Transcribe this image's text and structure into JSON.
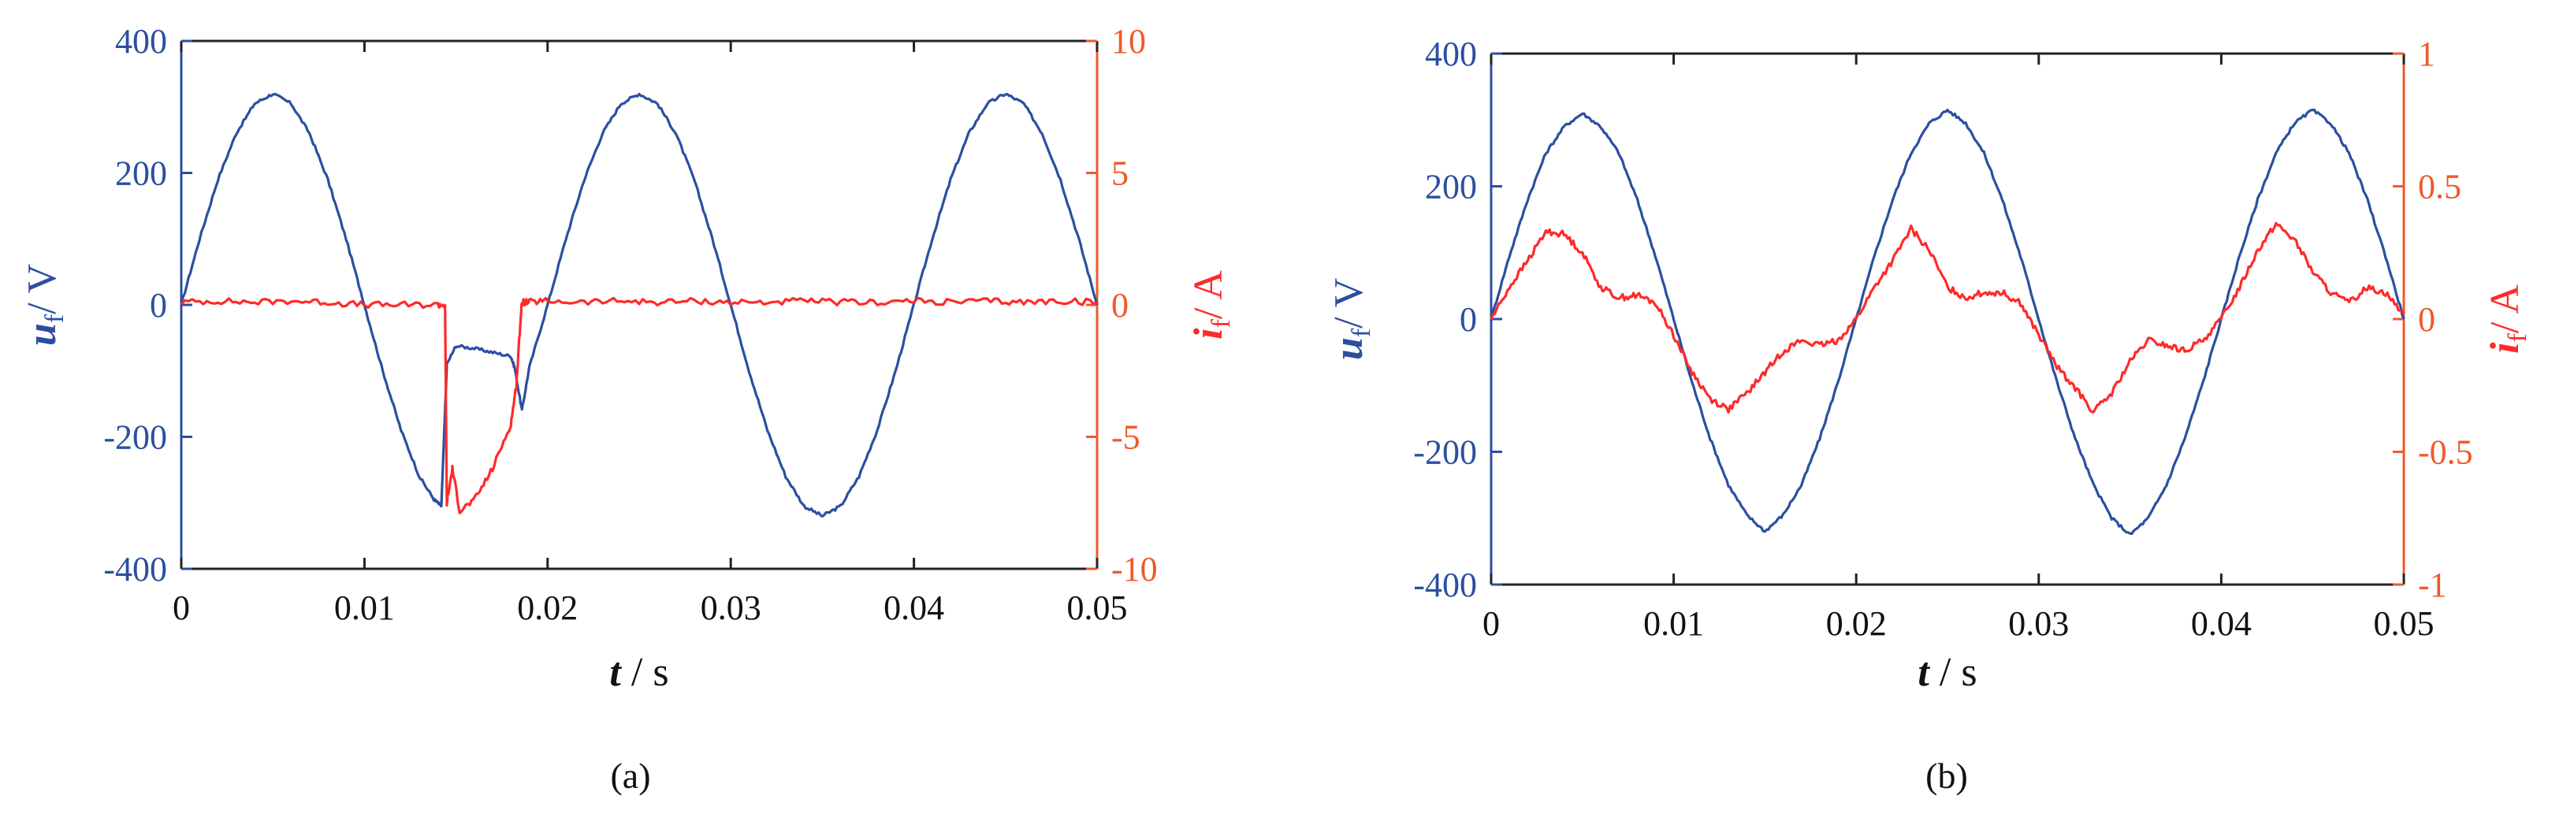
{
  "chart_data": [
    {
      "type": "line",
      "panel": "a",
      "caption": "(a)",
      "xlabel": {
        "var": "t",
        "unit": "/ s"
      },
      "ylabel_left": {
        "var": "u",
        "sub": "f",
        "unit": "/ V"
      },
      "ylabel_right": {
        "var": "i",
        "sub": "f",
        "unit": "/ A"
      },
      "xlim": [
        0,
        0.05
      ],
      "ylim_left": [
        -400,
        400
      ],
      "ylim_right": [
        -10,
        10
      ],
      "xticks": [
        "0",
        "0.01",
        "0.02",
        "0.03",
        "0.04",
        "0.05"
      ],
      "yticks_left": [
        "400",
        "200",
        "0",
        "-200",
        "-400"
      ],
      "yticks_right": [
        "10",
        "5",
        "0",
        "-5",
        "-10"
      ],
      "grid": false,
      "series": [
        {
          "axis": "left",
          "color": "#2b4fa0",
          "x": [
            0,
            0.001,
            0.002,
            0.003,
            0.004,
            0.005,
            0.006,
            0.007,
            0.008,
            0.009,
            0.01,
            0.011,
            0.012,
            0.013,
            0.0138,
            0.0142,
            0.0145,
            0.015,
            0.016,
            0.017,
            0.018,
            0.0182,
            0.0186,
            0.019,
            0.02,
            0.021,
            0.022,
            0.023,
            0.024,
            0.025,
            0.026,
            0.027,
            0.028,
            0.029,
            0.03,
            0.031,
            0.032,
            0.033,
            0.034,
            0.035,
            0.036,
            0.037,
            0.038,
            0.039,
            0.04,
            0.041,
            0.042,
            0.043,
            0.044,
            0.045,
            0.046,
            0.047,
            0.048,
            0.049,
            0.05
          ],
          "y": [
            0,
            100,
            190,
            260,
            305,
            320,
            305,
            260,
            190,
            100,
            0,
            -100,
            -190,
            -260,
            -295,
            -305,
            -90,
            -62,
            -66,
            -72,
            -78,
            -95,
            -160,
            -95,
            0,
            100,
            190,
            260,
            305,
            320,
            305,
            260,
            190,
            100,
            0,
            -100,
            -190,
            -260,
            -305,
            -320,
            -305,
            -260,
            -190,
            -100,
            0,
            100,
            190,
            260,
            305,
            320,
            305,
            260,
            190,
            100,
            0
          ]
        },
        {
          "axis": "right",
          "color": "#ff2a2a",
          "x": [
            0,
            0.002,
            0.004,
            0.006,
            0.008,
            0.01,
            0.012,
            0.014,
            0.0144,
            0.0145,
            0.0148,
            0.0152,
            0.016,
            0.017,
            0.018,
            0.0183,
            0.0185,
            0.0186,
            0.019,
            0.02,
            0.022,
            0.024,
            0.026,
            0.028,
            0.03,
            0.032,
            0.034,
            0.036,
            0.038,
            0.04,
            0.042,
            0.044,
            0.046,
            0.048,
            0.05
          ],
          "y": [
            0.1,
            0.15,
            0.1,
            0.15,
            0.1,
            0.0,
            0.0,
            0.0,
            0.0,
            -7.5,
            -6.2,
            -7.8,
            -7.4,
            -6.2,
            -4.5,
            -3.0,
            -0.8,
            0.1,
            0.1,
            0.15,
            0.1,
            0.15,
            0.1,
            0.15,
            0.1,
            0.1,
            0.15,
            0.1,
            0.1,
            0.15,
            0.1,
            0.15,
            0.1,
            0.15,
            0.1
          ]
        }
      ]
    },
    {
      "type": "line",
      "panel": "b",
      "caption": "(b)",
      "xlabel": {
        "var": "t",
        "unit": "/ s"
      },
      "ylabel_left": {
        "var": "u",
        "sub": "f",
        "unit": "/ V"
      },
      "ylabel_right": {
        "var": "i",
        "sub": "f",
        "unit": "/ A"
      },
      "xlim": [
        0,
        0.05
      ],
      "ylim_left": [
        -400,
        400
      ],
      "ylim_right": [
        -1,
        1
      ],
      "xticks": [
        "0",
        "0.01",
        "0.02",
        "0.03",
        "0.04",
        "0.05"
      ],
      "yticks_left": [
        "400",
        "200",
        "0",
        "-200",
        "-400"
      ],
      "yticks_right": [
        "1",
        "0.5",
        "0",
        "-0.5",
        "-1"
      ],
      "grid": false,
      "series": [
        {
          "axis": "left",
          "color": "#2b4fa0",
          "x": [
            0,
            0.001,
            0.002,
            0.003,
            0.004,
            0.005,
            0.006,
            0.007,
            0.008,
            0.009,
            0.01,
            0.011,
            0.012,
            0.013,
            0.014,
            0.015,
            0.016,
            0.017,
            0.018,
            0.019,
            0.02,
            0.021,
            0.022,
            0.023,
            0.024,
            0.025,
            0.026,
            0.027,
            0.028,
            0.029,
            0.03,
            0.031,
            0.032,
            0.033,
            0.034,
            0.035,
            0.036,
            0.037,
            0.038,
            0.039,
            0.04,
            0.041,
            0.042,
            0.043,
            0.044,
            0.045,
            0.046,
            0.047,
            0.048,
            0.049,
            0.05
          ],
          "y": [
            0,
            95,
            180,
            250,
            290,
            310,
            290,
            250,
            180,
            95,
            0,
            -95,
            -180,
            -250,
            -295,
            -320,
            -295,
            -250,
            -180,
            -95,
            0,
            95,
            180,
            250,
            295,
            315,
            295,
            250,
            180,
            95,
            0,
            -95,
            -180,
            -250,
            -300,
            -325,
            -300,
            -250,
            -180,
            -95,
            0,
            95,
            180,
            250,
            295,
            315,
            295,
            250,
            180,
            95,
            0
          ]
        },
        {
          "axis": "right",
          "color": "#ff2a2a",
          "x": [
            0,
            0.001,
            0.002,
            0.003,
            0.004,
            0.005,
            0.006,
            0.007,
            0.008,
            0.009,
            0.01,
            0.011,
            0.012,
            0.013,
            0.014,
            0.015,
            0.016,
            0.017,
            0.018,
            0.019,
            0.02,
            0.021,
            0.022,
            0.023,
            0.024,
            0.025,
            0.026,
            0.027,
            0.028,
            0.029,
            0.03,
            0.031,
            0.032,
            0.033,
            0.034,
            0.035,
            0.036,
            0.037,
            0.038,
            0.039,
            0.04,
            0.041,
            0.042,
            0.043,
            0.044,
            0.045,
            0.046,
            0.047,
            0.048,
            0.049,
            0.05
          ],
          "y": [
            0.0,
            0.12,
            0.22,
            0.33,
            0.32,
            0.25,
            0.12,
            0.08,
            0.09,
            0.06,
            -0.06,
            -0.2,
            -0.3,
            -0.34,
            -0.28,
            -0.2,
            -0.12,
            -0.08,
            -0.1,
            -0.08,
            0.0,
            0.12,
            0.22,
            0.34,
            0.26,
            0.12,
            0.08,
            0.1,
            0.1,
            0.06,
            -0.06,
            -0.18,
            -0.26,
            -0.35,
            -0.28,
            -0.16,
            -0.08,
            -0.1,
            -0.12,
            -0.08,
            0.0,
            0.12,
            0.26,
            0.36,
            0.3,
            0.18,
            0.1,
            0.06,
            0.12,
            0.1,
            0.02
          ]
        }
      ]
    }
  ]
}
